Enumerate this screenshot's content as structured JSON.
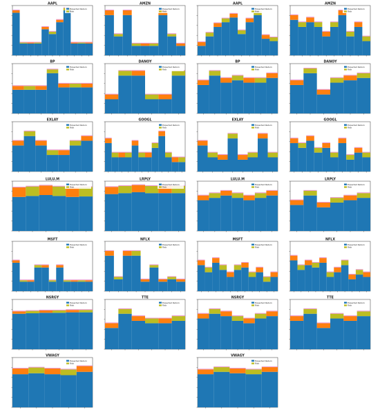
{
  "colors": {
    "return": "#1f77b4",
    "risk_orange": "#ff7f0e",
    "risk_olive": "#bcbd22",
    "noise_magenta": "#e377c2",
    "noise_cyan": "#17becf"
  },
  "chart_data": [
    {
      "type": "bar",
      "title": "AAPL",
      "categories": [
        "",
        "",
        "",
        "",
        "",
        "",
        "",
        "",
        "",
        "",
        ""
      ],
      "series": [
        {
          "name": "Expected Return",
          "values": [
            0.9,
            0.25,
            0.25,
            0.25,
            0.55,
            0.45,
            0.7,
            0.95,
            0.25,
            0.25,
            0.25
          ]
        },
        {
          "name": "Risk",
          "values": [
            0.05,
            0.02,
            0.02,
            0.02,
            0.05,
            0.05,
            0.05,
            0.05,
            0.02,
            0.02,
            0.02
          ]
        }
      ]
    },
    {
      "type": "bar",
      "title": "AMZN",
      "categories": [
        "",
        "",
        "",
        "",
        "",
        "",
        "",
        "",
        ""
      ],
      "series": [
        {
          "name": "Expected Return",
          "values": [
            0.85,
            0.4,
            0.85,
            0.2,
            0.2,
            0.2,
            0.85,
            0.4,
            0.2
          ]
        },
        {
          "name": "Risk",
          "values": [
            0.1,
            0.05,
            0.1,
            0.05,
            0.05,
            0.05,
            0.1,
            0.05,
            0.05
          ]
        }
      ]
    },
    {
      "type": "bar",
      "title": "AAPL",
      "categories": [
        "",
        "",
        "",
        "",
        "",
        "",
        "",
        "",
        "",
        ""
      ],
      "series": [
        {
          "name": "Expected Return",
          "values": [
            0.2,
            0.4,
            0.6,
            0.7,
            0.8,
            0.45,
            0.7,
            0.85,
            0.35,
            0.3
          ]
        },
        {
          "name": "Risk",
          "values": [
            0.08,
            0.08,
            0.08,
            0.08,
            0.08,
            0.08,
            0.08,
            0.08,
            0.08,
            0.08
          ]
        }
      ]
    },
    {
      "type": "bar",
      "title": "AMZN",
      "categories": [
        "",
        "",
        "",
        "",
        "",
        "",
        "",
        "",
        "",
        ""
      ],
      "series": [
        {
          "name": "Expected Return",
          "values": [
            0.75,
            0.6,
            0.7,
            0.6,
            0.4,
            0.6,
            0.85,
            0.4,
            0.6,
            0.3
          ]
        },
        {
          "name": "Risk",
          "values": [
            0.1,
            0.1,
            0.1,
            0.1,
            0.1,
            0.1,
            0.1,
            0.1,
            0.1,
            0.1
          ]
        }
      ]
    },
    {
      "type": "bar",
      "title": "BP",
      "categories": [
        "",
        "",
        "",
        "",
        "",
        "",
        ""
      ],
      "series": [
        {
          "name": "Expected Return",
          "values": [
            0.5,
            0.5,
            0.5,
            0.85,
            0.55,
            0.55,
            0.55
          ]
        },
        {
          "name": "Risk",
          "values": [
            0.08,
            0.08,
            0.08,
            0.08,
            0.08,
            0.08,
            0.08
          ]
        }
      ]
    },
    {
      "type": "bar",
      "title": "DANOY",
      "categories": [
        "",
        "",
        "",
        "",
        "",
        ""
      ],
      "series": [
        {
          "name": "Expected Return",
          "values": [
            0.3,
            0.8,
            0.8,
            0.3,
            0.3,
            0.8
          ]
        },
        {
          "name": "Risk",
          "values": [
            0.1,
            0.1,
            0.1,
            0.1,
            0.1,
            0.1
          ]
        }
      ]
    },
    {
      "type": "bar",
      "title": "BP",
      "categories": [
        "",
        "",
        "",
        "",
        "",
        "",
        ""
      ],
      "series": [
        {
          "name": "Expected Return",
          "values": [
            0.6,
            0.8,
            0.65,
            0.7,
            0.65,
            0.65,
            0.75
          ]
        },
        {
          "name": "Risk",
          "values": [
            0.1,
            0.1,
            0.1,
            0.1,
            0.1,
            0.1,
            0.1
          ]
        }
      ]
    },
    {
      "type": "bar",
      "title": "DANOY",
      "categories": [
        "",
        "",
        "",
        "",
        "",
        ""
      ],
      "series": [
        {
          "name": "Expected Return",
          "values": [
            0.6,
            0.85,
            0.4,
            0.65,
            0.7,
            0.75
          ]
        },
        {
          "name": "Risk",
          "values": [
            0.1,
            0.1,
            0.1,
            0.1,
            0.1,
            0.1
          ]
        }
      ]
    },
    {
      "type": "bar",
      "title": "EXLAY",
      "categories": [
        "",
        "",
        "",
        "",
        "",
        "",
        ""
      ],
      "series": [
        {
          "name": "Expected Return",
          "values": [
            0.55,
            0.75,
            0.55,
            0.35,
            0.35,
            0.55,
            0.65
          ]
        },
        {
          "name": "Risk",
          "values": [
            0.1,
            0.1,
            0.1,
            0.1,
            0.1,
            0.1,
            0.1
          ]
        }
      ]
    },
    {
      "type": "bar",
      "title": "GOOGL",
      "categories": [
        "",
        "",
        "",
        "",
        "",
        "",
        "",
        "",
        "",
        "",
        "",
        ""
      ],
      "series": [
        {
          "name": "Expected Return",
          "values": [
            0.6,
            0.3,
            0.3,
            0.3,
            0.55,
            0.3,
            0.3,
            0.5,
            0.75,
            0.3,
            0.2,
            0.2
          ]
        },
        {
          "name": "Risk",
          "values": [
            0.1,
            0.1,
            0.1,
            0.1,
            0.1,
            0.1,
            0.1,
            0.1,
            0.1,
            0.1,
            0.1,
            0.1
          ]
        }
      ]
    },
    {
      "type": "bar",
      "title": "EXLAY",
      "categories": [
        "",
        "",
        "",
        "",
        "",
        "",
        "",
        ""
      ],
      "series": [
        {
          "name": "Expected Return",
          "values": [
            0.55,
            0.3,
            0.25,
            0.7,
            0.25,
            0.3,
            0.7,
            0.3
          ]
        },
        {
          "name": "Risk",
          "values": [
            0.1,
            0.1,
            0.1,
            0.1,
            0.1,
            0.1,
            0.1,
            0.1
          ]
        }
      ]
    },
    {
      "type": "bar",
      "title": "GOOGL",
      "categories": [
        "",
        "",
        "",
        "",
        "",
        "",
        "",
        "",
        "",
        ""
      ],
      "series": [
        {
          "name": "Expected Return",
          "values": [
            0.6,
            0.5,
            0.65,
            0.4,
            0.5,
            0.3,
            0.6,
            0.25,
            0.4,
            0.3
          ]
        },
        {
          "name": "Risk",
          "values": [
            0.1,
            0.1,
            0.1,
            0.1,
            0.1,
            0.1,
            0.1,
            0.1,
            0.1,
            0.1
          ]
        }
      ]
    },
    {
      "type": "bar",
      "title": "LULU.M",
      "categories": [
        "",
        "",
        "",
        "",
        "",
        ""
      ],
      "series": [
        {
          "name": "Expected Return",
          "values": [
            0.72,
            0.74,
            0.76,
            0.74,
            0.72,
            0.73
          ]
        },
        {
          "name": "Risk",
          "values": [
            0.2,
            0.2,
            0.2,
            0.2,
            0.2,
            0.2
          ]
        }
      ]
    },
    {
      "type": "bar",
      "title": "LRPLY",
      "categories": [
        "",
        "",
        "",
        "",
        "",
        ""
      ],
      "series": [
        {
          "name": "Expected Return",
          "values": [
            0.78,
            0.8,
            0.82,
            0.8,
            0.8,
            0.8
          ]
        },
        {
          "name": "Risk",
          "values": [
            0.15,
            0.15,
            0.15,
            0.15,
            0.15,
            0.15
          ]
        }
      ]
    },
    {
      "type": "bar",
      "title": "LULU.M",
      "categories": [
        "",
        "",
        "",
        "",
        "",
        "",
        ""
      ],
      "series": [
        {
          "name": "Expected Return",
          "values": [
            0.65,
            0.7,
            0.75,
            0.7,
            0.65,
            0.7,
            0.75
          ]
        },
        {
          "name": "Risk",
          "values": [
            0.1,
            0.1,
            0.1,
            0.1,
            0.1,
            0.1,
            0.1
          ]
        }
      ]
    },
    {
      "type": "bar",
      "title": "LRPLY",
      "categories": [
        "",
        "",
        "",
        "",
        "",
        ""
      ],
      "series": [
        {
          "name": "Expected Return",
          "values": [
            0.55,
            0.75,
            0.5,
            0.6,
            0.65,
            0.7
          ]
        },
        {
          "name": "Risk",
          "values": [
            0.1,
            0.1,
            0.1,
            0.1,
            0.1,
            0.1
          ]
        }
      ]
    },
    {
      "type": "bar",
      "title": "MSFT",
      "categories": [
        "",
        "",
        "",
        "",
        "",
        "",
        "",
        "",
        "",
        "",
        ""
      ],
      "series": [
        {
          "name": "Expected Return",
          "values": [
            0.6,
            0.2,
            0.2,
            0.5,
            0.5,
            0.2,
            0.5,
            0.2,
            0.2,
            0.2,
            0.2
          ]
        },
        {
          "name": "Risk",
          "values": [
            0.05,
            0.03,
            0.03,
            0.05,
            0.05,
            0.03,
            0.05,
            0.03,
            0.03,
            0.03,
            0.03
          ]
        }
      ]
    },
    {
      "type": "bar",
      "title": "NFLX",
      "categories": [
        "",
        "",
        "",
        "",
        "",
        "",
        "",
        "",
        ""
      ],
      "series": [
        {
          "name": "Expected Return",
          "values": [
            0.75,
            0.25,
            0.75,
            0.75,
            0.2,
            0.5,
            0.2,
            0.25,
            0.2
          ]
        },
        {
          "name": "Risk",
          "values": [
            0.1,
            0.05,
            0.1,
            0.1,
            0.05,
            0.05,
            0.05,
            0.05,
            0.05
          ]
        }
      ]
    },
    {
      "type": "bar",
      "title": "MSFT",
      "categories": [
        "",
        "",
        "",
        "",
        "",
        "",
        "",
        "",
        "",
        "",
        ""
      ],
      "series": [
        {
          "name": "Expected Return",
          "values": [
            0.55,
            0.4,
            0.6,
            0.45,
            0.3,
            0.45,
            0.5,
            0.3,
            0.4,
            0.2,
            0.3
          ]
        },
        {
          "name": "Risk",
          "values": [
            0.1,
            0.1,
            0.1,
            0.1,
            0.1,
            0.1,
            0.1,
            0.1,
            0.1,
            0.1,
            0.1
          ]
        }
      ]
    },
    {
      "type": "bar",
      "title": "NFLX",
      "categories": [
        "",
        "",
        "",
        "",
        "",
        "",
        "",
        "",
        "",
        "",
        ""
      ],
      "series": [
        {
          "name": "Expected Return",
          "values": [
            0.65,
            0.45,
            0.55,
            0.5,
            0.6,
            0.3,
            0.4,
            0.55,
            0.25,
            0.35,
            0.3
          ]
        },
        {
          "name": "Risk",
          "values": [
            0.1,
            0.1,
            0.1,
            0.1,
            0.1,
            0.1,
            0.1,
            0.1,
            0.1,
            0.1,
            0.1
          ]
        }
      ]
    },
    {
      "type": "bar",
      "title": "NSRGY",
      "categories": [
        "",
        "",
        "",
        "",
        "",
        ""
      ],
      "series": [
        {
          "name": "Expected Return",
          "values": [
            0.75,
            0.76,
            0.77,
            0.77,
            0.78,
            0.78
          ]
        },
        {
          "name": "Risk",
          "values": [
            0.05,
            0.05,
            0.05,
            0.05,
            0.05,
            0.05
          ]
        }
      ]
    },
    {
      "type": "bar",
      "title": "TTE",
      "categories": [
        "",
        "",
        "",
        "",
        "",
        ""
      ],
      "series": [
        {
          "name": "Expected Return",
          "values": [
            0.45,
            0.75,
            0.6,
            0.55,
            0.55,
            0.6
          ]
        },
        {
          "name": "Risk",
          "values": [
            0.1,
            0.1,
            0.1,
            0.1,
            0.1,
            0.1
          ]
        }
      ]
    },
    {
      "type": "bar",
      "title": "NSRGY",
      "categories": [
        "",
        "",
        "",
        "",
        "",
        "",
        ""
      ],
      "series": [
        {
          "name": "Expected Return",
          "values": [
            0.65,
            0.75,
            0.7,
            0.6,
            0.55,
            0.65,
            0.7
          ]
        },
        {
          "name": "Risk",
          "values": [
            0.1,
            0.1,
            0.1,
            0.1,
            0.1,
            0.1,
            0.1
          ]
        }
      ]
    },
    {
      "type": "bar",
      "title": "TTE",
      "categories": [
        "",
        "",
        "",
        "",
        "",
        ""
      ],
      "series": [
        {
          "name": "Expected Return",
          "values": [
            0.6,
            0.75,
            0.45,
            0.65,
            0.6,
            0.7
          ]
        },
        {
          "name": "Risk",
          "values": [
            0.1,
            0.1,
            0.1,
            0.1,
            0.1,
            0.1
          ]
        }
      ]
    },
    {
      "type": "bar",
      "title": "VWAGY",
      "categories": [
        "",
        "",
        "",
        "",
        ""
      ],
      "series": [
        {
          "name": "Expected Return",
          "values": [
            0.7,
            0.72,
            0.7,
            0.68,
            0.75
          ]
        },
        {
          "name": "Risk",
          "values": [
            0.12,
            0.12,
            0.12,
            0.12,
            0.12
          ]
        }
      ]
    },
    {
      "type": "bar",
      "title": "VWAGY",
      "categories": [
        "",
        "",
        "",
        "",
        ""
      ],
      "series": [
        {
          "name": "Expected Return",
          "values": [
            0.7,
            0.75,
            0.72,
            0.7,
            0.75
          ]
        },
        {
          "name": "Risk",
          "values": [
            0.1,
            0.1,
            0.1,
            0.1,
            0.1
          ]
        }
      ]
    }
  ]
}
